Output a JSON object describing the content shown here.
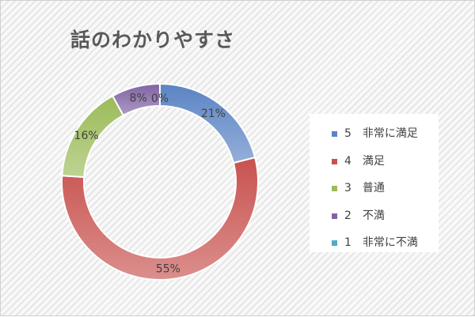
{
  "chart_data": {
    "type": "pie",
    "variant": "donut",
    "title": "話のわかりやすさ",
    "categories": [
      "5　非常に満足",
      "4　満足",
      "3　普通",
      "2　不満",
      "1　非常に不満"
    ],
    "values": [
      21,
      55,
      16,
      8,
      0
    ],
    "labels": [
      "21%",
      "55%",
      "16%",
      "8%",
      "0%"
    ],
    "colors": [
      "#5b84c4",
      "#c8524f",
      "#9bbb59",
      "#8064a2",
      "#4bacc6"
    ],
    "legend_position": "right"
  }
}
